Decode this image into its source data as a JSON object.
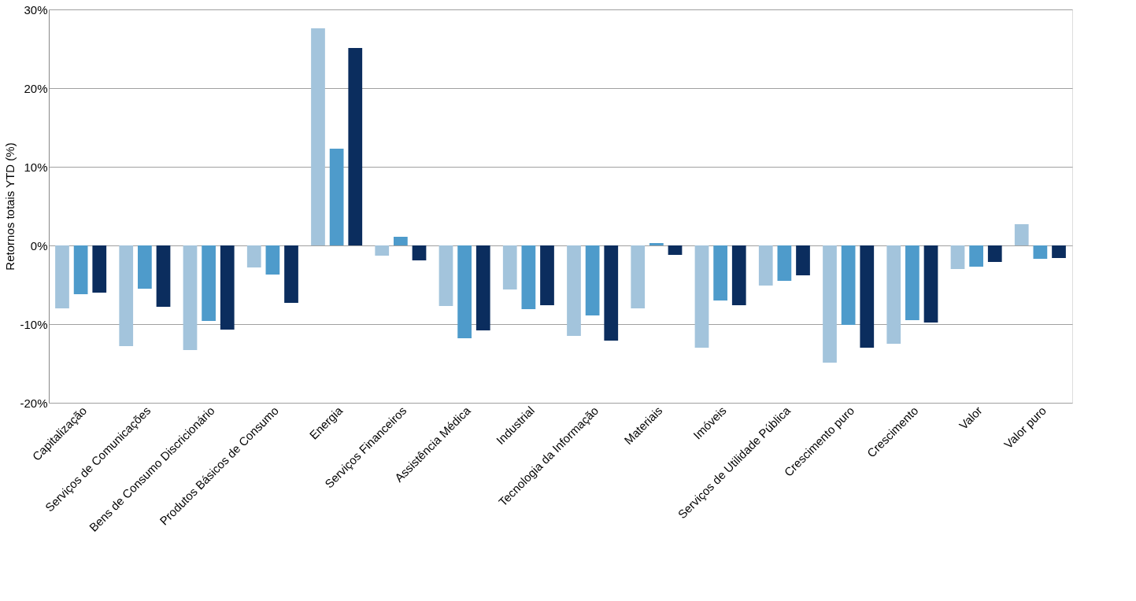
{
  "chart_data": {
    "type": "bar",
    "ylabel": "Retornos totais YTD (%)",
    "categories": [
      "Capitalização",
      "Serviços de Comunicações",
      "Bens de Consumo Discricionário",
      "Produtos Básicos de Consumo",
      "Energia",
      "Serviços Financeiros",
      "Assistência Médica",
      "Industrial",
      "Tecnologia da Informação",
      "Materiais",
      "Imóveis",
      "Serviços de Utilidade Pública",
      "Crescimento puro",
      "Crescimento",
      "Valor",
      "Valor puro"
    ],
    "series": [
      {
        "color": "#a3c4dc",
        "values": [
          -8.0,
          -12.8,
          -13.3,
          -2.8,
          27.6,
          -1.3,
          -7.7,
          -5.6,
          -11.5,
          -8.0,
          -13.0,
          -5.1,
          -14.9,
          -12.5,
          -3.0,
          2.7
        ]
      },
      {
        "color": "#4e9bcb",
        "values": [
          -6.2,
          -5.5,
          -9.6,
          -3.7,
          12.3,
          1.1,
          -11.8,
          -8.1,
          -8.9,
          0.3,
          -7.0,
          -4.5,
          -10.1,
          -9.5,
          -2.7,
          -1.7
        ]
      },
      {
        "color": "#0b2d5e",
        "values": [
          -6.0,
          -7.8,
          -10.7,
          -7.3,
          25.1,
          -1.9,
          -10.8,
          -7.6,
          -12.1,
          -1.2,
          -7.6,
          -3.8,
          -13.0,
          -9.8,
          -2.1,
          -1.6
        ]
      }
    ],
    "ylim": [
      -20,
      30
    ],
    "yticks": [
      {
        "value": -20,
        "label": "-20%"
      },
      {
        "value": -10,
        "label": "-10%"
      },
      {
        "value": 0,
        "label": "0%"
      },
      {
        "value": 10,
        "label": "10%"
      },
      {
        "value": 20,
        "label": "20%"
      },
      {
        "value": 30,
        "label": "30%"
      }
    ],
    "grid": "y",
    "legend": false
  }
}
